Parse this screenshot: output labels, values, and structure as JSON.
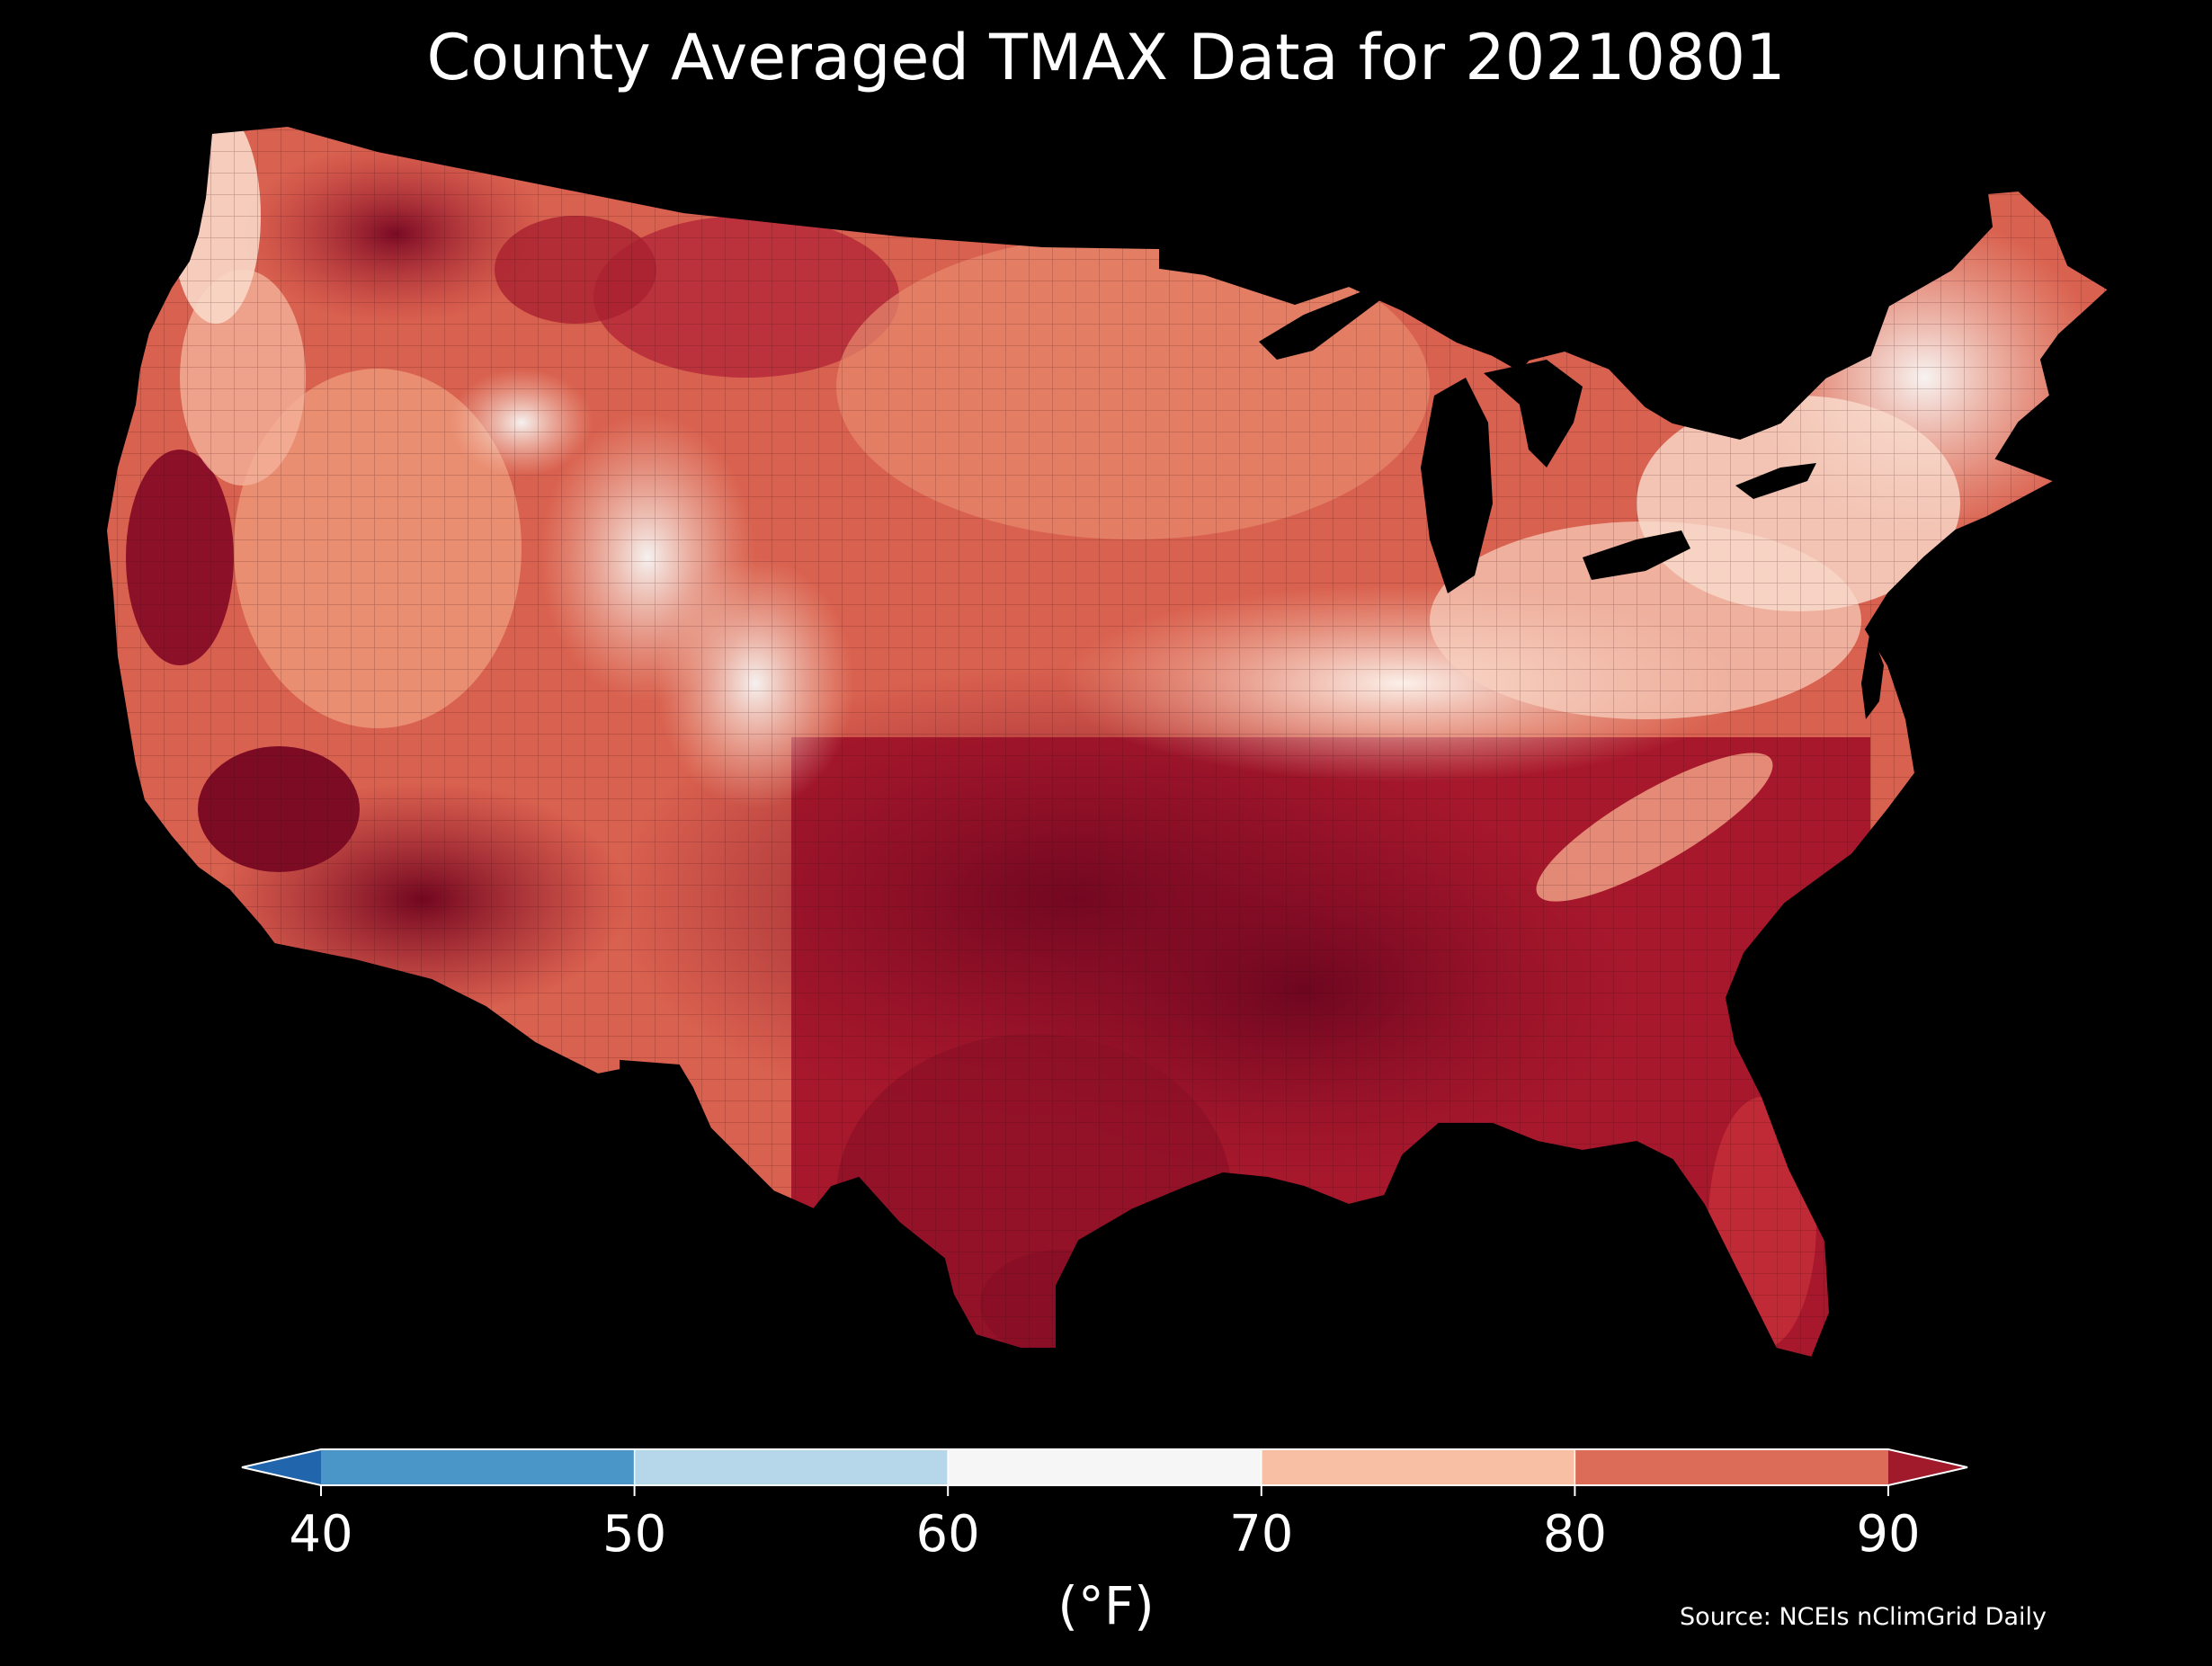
{
  "title": "County Averaged TMAX Data for 20210801",
  "colorbar": {
    "ticks": [
      "40",
      "50",
      "60",
      "70",
      "80",
      "90"
    ],
    "label": "(°F)",
    "bins": [
      {
        "from": 40,
        "to": 50,
        "color": "#4b96c8"
      },
      {
        "from": 50,
        "to": 60,
        "color": "#b6d7ea"
      },
      {
        "from": 60,
        "to": 70,
        "color": "#f6f6f6"
      },
      {
        "from": 70,
        "to": 80,
        "color": "#f8bfa4"
      },
      {
        "from": 80,
        "to": 90,
        "color": "#dc6b58"
      }
    ],
    "under_color": "#2166ac",
    "over_color": "#a11a2c"
  },
  "source": "Source: NCEIs nClimGrid Daily",
  "colors": {
    "background": "#000000",
    "hot": "#7f0a22",
    "warm": "#c8323c",
    "mild": "#e98a6e",
    "cool": "#fbe0d2",
    "lake": "#000000"
  }
}
